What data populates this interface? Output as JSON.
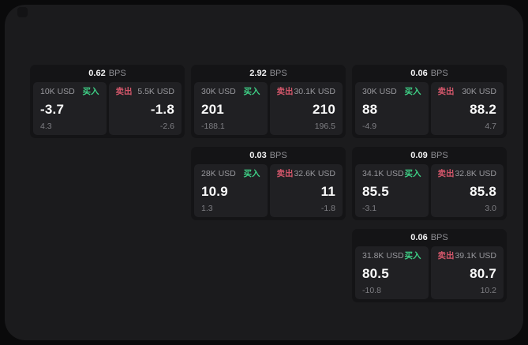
{
  "labels": {
    "bps_unit": "BPS",
    "buy": "买入",
    "sell": "卖出"
  },
  "colors": {
    "buy": "#3ecf85",
    "sell": "#d2566a",
    "surface": "#1b1b1d",
    "card": "#141416",
    "panel": "#202023"
  },
  "cards": [
    {
      "bps": "0.62",
      "buy": {
        "amount": "10K USD",
        "price": "-3.7",
        "delta": "4.3"
      },
      "sell": {
        "amount": "5.5K USD",
        "price": "-1.8",
        "delta": "-2.6"
      }
    },
    {
      "bps": "2.92",
      "buy": {
        "amount": "30K USD",
        "price": "201",
        "delta": "-188.1"
      },
      "sell": {
        "amount": "30.1K USD",
        "price": "210",
        "delta": "196.5"
      }
    },
    {
      "bps": "0.06",
      "buy": {
        "amount": "30K USD",
        "price": "88",
        "delta": "-4.9"
      },
      "sell": {
        "amount": "30K USD",
        "price": "88.2",
        "delta": "4.7"
      }
    },
    {
      "bps": "0.03",
      "buy": {
        "amount": "28K USD",
        "price": "10.9",
        "delta": "1.3"
      },
      "sell": {
        "amount": "32.6K USD",
        "price": "11",
        "delta": "-1.8"
      }
    },
    {
      "bps": "0.09",
      "buy": {
        "amount": "34.1K USD",
        "price": "85.5",
        "delta": "-3.1"
      },
      "sell": {
        "amount": "32.8K USD",
        "price": "85.8",
        "delta": "3.0"
      }
    },
    {
      "bps": "0.06",
      "buy": {
        "amount": "31.8K USD",
        "price": "80.5",
        "delta": "-10.8"
      },
      "sell": {
        "amount": "39.1K USD",
        "price": "80.7",
        "delta": "10.2"
      }
    }
  ]
}
